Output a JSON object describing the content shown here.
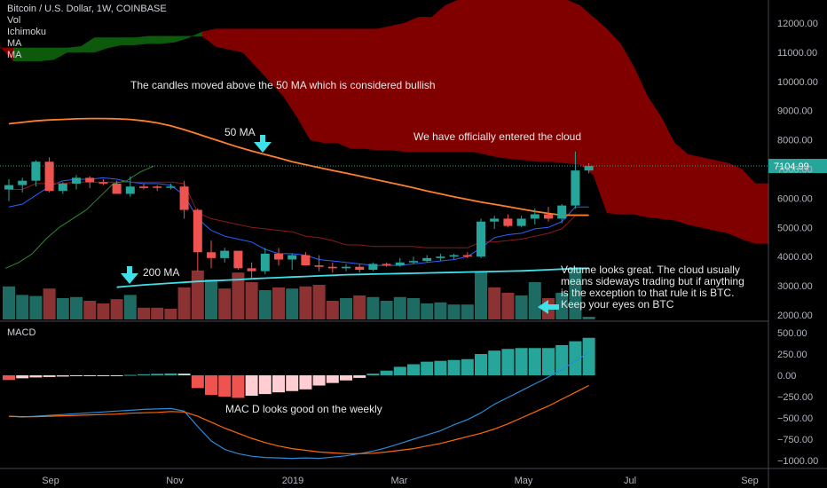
{
  "header": {
    "title": "Bitcoin / U.S. Dollar, 1W, COINBASE",
    "indicators": [
      "Vol",
      "Ichimoku",
      "MA",
      "MA"
    ]
  },
  "macd_label": "MACD",
  "price_label": "7104.99",
  "annotations": {
    "above_50ma": "The candles moved above the 50 MA which is considered bullish",
    "ma50": "50 MA",
    "cloud": "We have officially entered the cloud",
    "ma200": "200 MA",
    "volume": "Volume looks great. The cloud usually means sideways trading but if anything is the exception to that rule it is BTC. Keep your eyes on BTC",
    "macd": "MAC D looks good on the weekly"
  },
  "colors": {
    "background": "#000000",
    "bull": "#26a69a",
    "bear": "#ef5350",
    "bull_vol": "#1d6b62",
    "bear_vol": "#8c3232",
    "cloud_bear": "#800000",
    "cloud_bull": "#0d5a0d",
    "ma50": "#ff7f2a",
    "ma200": "#40e0e8",
    "arrow": "#40e0e8",
    "macd_line": "#2a8bd6",
    "signal_line": "#ff6a00"
  },
  "chart_data": [
    {
      "type": "candlestick",
      "title": "Bitcoin / U.S. Dollar, 1W, COINBASE",
      "y_ticks": [
        "2000.00",
        "3000.00",
        "4000.00",
        "5000.00",
        "6000.00",
        "7000.00",
        "8000.00",
        "9000.00",
        "10000.00",
        "11000.00",
        "12000.00"
      ],
      "ylim": [
        1700,
        12700
      ],
      "x_ticks": [
        "Sep",
        "Nov",
        "2019",
        "Mar",
        "May",
        "Jul",
        "Sep"
      ],
      "last_price": 7104.99,
      "candles": [
        {
          "o": 6300,
          "h": 6650,
          "l": 5900,
          "c": 6450
        },
        {
          "o": 6450,
          "h": 6700,
          "l": 6200,
          "c": 6600
        },
        {
          "o": 6600,
          "h": 7300,
          "l": 6400,
          "c": 7250
        },
        {
          "o": 7250,
          "h": 7400,
          "l": 6200,
          "c": 6250
        },
        {
          "o": 6250,
          "h": 6550,
          "l": 6150,
          "c": 6500
        },
        {
          "o": 6500,
          "h": 6800,
          "l": 6300,
          "c": 6700
        },
        {
          "o": 6700,
          "h": 6750,
          "l": 6350,
          "c": 6550
        },
        {
          "o": 6550,
          "h": 6650,
          "l": 6450,
          "c": 6500
        },
        {
          "o": 6500,
          "h": 6600,
          "l": 6200,
          "c": 6150
        },
        {
          "o": 6150,
          "h": 6750,
          "l": 6050,
          "c": 6400
        },
        {
          "o": 6400,
          "h": 6500,
          "l": 6300,
          "c": 6350
        },
        {
          "o": 6400,
          "h": 6450,
          "l": 6250,
          "c": 6380
        },
        {
          "o": 6380,
          "h": 6500,
          "l": 6300,
          "c": 6400
        },
        {
          "o": 6400,
          "h": 6600,
          "l": 5300,
          "c": 5600
        },
        {
          "o": 5600,
          "h": 5650,
          "l": 3500,
          "c": 4150
        },
        {
          "o": 4150,
          "h": 4550,
          "l": 3600,
          "c": 3950
        },
        {
          "o": 3950,
          "h": 4300,
          "l": 3800,
          "c": 4200
        },
        {
          "o": 4200,
          "h": 4200,
          "l": 3550,
          "c": 3600
        },
        {
          "o": 3600,
          "h": 3800,
          "l": 3250,
          "c": 3500
        },
        {
          "o": 3500,
          "h": 4300,
          "l": 3400,
          "c": 4100
        },
        {
          "o": 4100,
          "h": 4300,
          "l": 3700,
          "c": 3900
        },
        {
          "o": 3900,
          "h": 4100,
          "l": 3550,
          "c": 4050
        },
        {
          "o": 4050,
          "h": 4150,
          "l": 3800,
          "c": 3700
        },
        {
          "o": 3700,
          "h": 4050,
          "l": 3500,
          "c": 3650
        },
        {
          "o": 3650,
          "h": 3800,
          "l": 3450,
          "c": 3600
        },
        {
          "o": 3600,
          "h": 3750,
          "l": 3500,
          "c": 3650
        },
        {
          "o": 3650,
          "h": 3750,
          "l": 3450,
          "c": 3550
        },
        {
          "o": 3550,
          "h": 3800,
          "l": 3500,
          "c": 3750
        },
        {
          "o": 3750,
          "h": 3800,
          "l": 3650,
          "c": 3700
        },
        {
          "o": 3700,
          "h": 3950,
          "l": 3650,
          "c": 3800
        },
        {
          "o": 3800,
          "h": 4000,
          "l": 3750,
          "c": 3850
        },
        {
          "o": 3850,
          "h": 4050,
          "l": 3800,
          "c": 3950
        },
        {
          "o": 3950,
          "h": 4100,
          "l": 3850,
          "c": 4000
        },
        {
          "o": 4000,
          "h": 4100,
          "l": 3900,
          "c": 4050
        },
        {
          "o": 4050,
          "h": 4150,
          "l": 3950,
          "c": 4000
        },
        {
          "o": 4000,
          "h": 5300,
          "l": 3950,
          "c": 5200
        },
        {
          "o": 5200,
          "h": 5400,
          "l": 4950,
          "c": 5300
        },
        {
          "o": 5300,
          "h": 5450,
          "l": 5000,
          "c": 5050
        },
        {
          "o": 5050,
          "h": 5400,
          "l": 5000,
          "c": 5300
        },
        {
          "o": 5300,
          "h": 5650,
          "l": 5100,
          "c": 5450
        },
        {
          "o": 5450,
          "h": 5700,
          "l": 5200,
          "c": 5300
        },
        {
          "o": 5300,
          "h": 5800,
          "l": 5150,
          "c": 5750
        },
        {
          "o": 5750,
          "h": 7600,
          "l": 5650,
          "c": 6950
        },
        {
          "o": 6950,
          "h": 7200,
          "l": 6850,
          "c": 7105
        }
      ],
      "volume": [
        {
          "v": 0.62,
          "up": true
        },
        {
          "v": 0.46,
          "up": true
        },
        {
          "v": 0.44,
          "up": true
        },
        {
          "v": 0.58,
          "up": false
        },
        {
          "v": 0.4,
          "up": true
        },
        {
          "v": 0.42,
          "up": true
        },
        {
          "v": 0.35,
          "up": false
        },
        {
          "v": 0.3,
          "up": false
        },
        {
          "v": 0.38,
          "up": false
        },
        {
          "v": 0.46,
          "up": true
        },
        {
          "v": 0.22,
          "up": false
        },
        {
          "v": 0.22,
          "up": false
        },
        {
          "v": 0.2,
          "up": false
        },
        {
          "v": 0.6,
          "up": false
        },
        {
          "v": 0.92,
          "up": false
        },
        {
          "v": 0.75,
          "up": true
        },
        {
          "v": 0.58,
          "up": false
        },
        {
          "v": 0.88,
          "up": false
        },
        {
          "v": 0.7,
          "up": false
        },
        {
          "v": 0.55,
          "up": true
        },
        {
          "v": 0.6,
          "up": false
        },
        {
          "v": 0.58,
          "up": true
        },
        {
          "v": 0.62,
          "up": false
        },
        {
          "v": 0.65,
          "up": false
        },
        {
          "v": 0.35,
          "up": false
        },
        {
          "v": 0.4,
          "up": true
        },
        {
          "v": 0.45,
          "up": false
        },
        {
          "v": 0.42,
          "up": true
        },
        {
          "v": 0.35,
          "up": true
        },
        {
          "v": 0.42,
          "up": true
        },
        {
          "v": 0.4,
          "up": true
        },
        {
          "v": 0.3,
          "up": true
        },
        {
          "v": 0.32,
          "up": true
        },
        {
          "v": 0.28,
          "up": true
        },
        {
          "v": 0.28,
          "up": true
        },
        {
          "v": 0.9,
          "up": true
        },
        {
          "v": 0.6,
          "up": false
        },
        {
          "v": 0.5,
          "up": false
        },
        {
          "v": 0.45,
          "up": true
        },
        {
          "v": 0.7,
          "up": true
        },
        {
          "v": 0.4,
          "up": false
        },
        {
          "v": 0.5,
          "up": true
        },
        {
          "v": 0.98,
          "up": true
        },
        {
          "v": 0.05,
          "up": true
        }
      ],
      "ma50": [
        8550,
        8600,
        8650,
        8680,
        8700,
        8720,
        8730,
        8730,
        8720,
        8700,
        8650,
        8580,
        8480,
        8350,
        8200,
        8050,
        7900,
        7750,
        7620,
        7500,
        7380,
        7250,
        7150,
        7050,
        6950,
        6860,
        6760,
        6660,
        6560,
        6460,
        6360,
        6250,
        6150,
        6050,
        5960,
        5870,
        5790,
        5710,
        5630,
        5550,
        5480,
        5420,
        5420,
        5420
      ],
      "ma200": [
        null,
        null,
        null,
        null,
        null,
        null,
        null,
        null,
        2950,
        2990,
        3030,
        3060,
        3090,
        3120,
        3150,
        3170,
        3190,
        3210,
        3240,
        3260,
        3280,
        3300,
        3320,
        3340,
        3360,
        3380,
        3390,
        3400,
        3410,
        3420,
        3430,
        3440,
        3450,
        3460,
        3470,
        3480,
        3490,
        3500,
        3510,
        3530,
        3550,
        3570,
        3590,
        3600
      ],
      "ichimoku_cloud": {
        "span_a": [
          11150,
          11150,
          11150,
          11150,
          11150,
          11150,
          11200,
          11500,
          11500,
          11500,
          11500,
          11550,
          11550,
          11550,
          11550,
          11550,
          11200,
          11100,
          11000,
          10500,
          10000,
          9500,
          8800,
          8000,
          7900,
          7900,
          7700,
          7700,
          7650,
          7650,
          7600,
          7600,
          7600,
          7600,
          7600,
          7600,
          7500,
          7400,
          7350,
          7300,
          7250,
          7250,
          7200,
          7150,
          6800,
          5500,
          5450,
          5450,
          5350,
          5300,
          5250,
          5100,
          5000,
          4900,
          4800,
          4600,
          4450,
          4450
        ],
        "span_b": [
          11200,
          10700,
          10700,
          10700,
          10750,
          11000,
          11000,
          11000,
          11150,
          11250,
          11250,
          11300,
          11300,
          11350,
          11500,
          11700,
          11800,
          11800,
          11800,
          11800,
          11800,
          11800,
          11800,
          11800,
          11800,
          11800,
          11800,
          11800,
          11800,
          11900,
          12000,
          12200,
          12200,
          12600,
          12800,
          12800,
          12800,
          12800,
          12800,
          12800,
          12800,
          12800,
          12800,
          12600,
          12200,
          11800,
          11300,
          10500,
          9500,
          8800,
          7900,
          7500,
          7400,
          7300,
          7200,
          7000,
          6500,
          6500
        ]
      },
      "tenkan": [
        5700,
        5800,
        6100,
        6400,
        6600,
        6650,
        6650,
        6700,
        6650,
        6550,
        6500,
        6500,
        6450,
        6100,
        5300,
        4900,
        4700,
        4600,
        4500,
        4250,
        4100,
        4100,
        4050,
        3900,
        3850,
        3800,
        3750,
        3700,
        3700,
        3700,
        3750,
        3800,
        3850,
        3900,
        4000,
        4300,
        4650,
        4750,
        4800,
        4950,
        5000,
        5200,
        5700,
        5700
      ],
      "kijun": [
        6300,
        6300,
        6500,
        6500,
        6500,
        6550,
        6550,
        6550,
        6550,
        6550,
        6550,
        6550,
        6550,
        6500,
        5500,
        5300,
        5200,
        5100,
        5000,
        4950,
        4900,
        4850,
        4700,
        4650,
        4550,
        4400,
        4400,
        4350,
        4350,
        4350,
        4350,
        4300,
        4300,
        4300,
        4300,
        4500,
        4500,
        4550,
        4600,
        4700,
        4800,
        4950,
        5400,
        5400
      ],
      "chikou": [
        3600,
        3800,
        4100,
        4600,
        5000,
        5300,
        5600,
        6050,
        6500,
        6600,
        6900,
        7100
      ]
    },
    {
      "type": "bar",
      "title": "MACD",
      "y_ticks": [
        "500.00",
        "250.00",
        "0.00",
        "−250.00",
        "−500.00",
        "−750.00",
        "−1000.00"
      ],
      "ylim": [
        -1060,
        560
      ],
      "histogram": [
        -55,
        -35,
        -25,
        -20,
        -15,
        -10,
        -8,
        -5,
        -2,
        5,
        12,
        18,
        22,
        20,
        -150,
        -230,
        -250,
        -265,
        -240,
        -220,
        -200,
        -185,
        -165,
        -120,
        -90,
        -60,
        -30,
        20,
        55,
        100,
        130,
        160,
        170,
        180,
        190,
        250,
        290,
        310,
        320,
        320,
        320,
        355,
        400,
        440
      ],
      "macd_line": [
        -480,
        -490,
        -480,
        -470,
        -460,
        -450,
        -440,
        -430,
        -420,
        -410,
        -400,
        -395,
        -390,
        -420,
        -600,
        -770,
        -870,
        -920,
        -950,
        -965,
        -970,
        -975,
        -970,
        -975,
        -960,
        -945,
        -920,
        -890,
        -850,
        -800,
        -750,
        -700,
        -650,
        -580,
        -520,
        -440,
        -340,
        -260,
        -180,
        -100,
        -20,
        70,
        170,
        270
      ],
      "signal_line": [
        -480,
        -485,
        -485,
        -480,
        -475,
        -470,
        -465,
        -460,
        -455,
        -445,
        -440,
        -435,
        -425,
        -430,
        -480,
        -550,
        -620,
        -680,
        -740,
        -790,
        -830,
        -860,
        -880,
        -900,
        -910,
        -920,
        -920,
        -915,
        -900,
        -880,
        -860,
        -830,
        -800,
        -760,
        -720,
        -680,
        -630,
        -570,
        -500,
        -430,
        -360,
        -280,
        -200,
        -120
      ]
    }
  ]
}
